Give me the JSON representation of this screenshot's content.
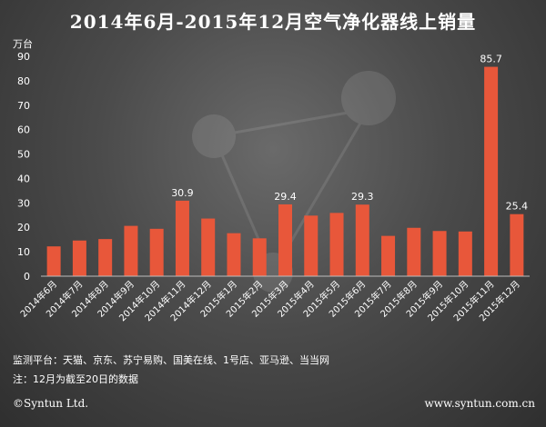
{
  "chart_data": {
    "type": "bar",
    "title": "2014年6月-2015年12月空气净化器线上销量",
    "unit_label": "万台",
    "categories": [
      "2014年6月",
      "2014年7月",
      "2014年8月",
      "2014年9月",
      "2014年10月",
      "2014年11月",
      "2014年12月",
      "2015年1月",
      "2015年2月",
      "2015年3月",
      "2015年4月",
      "2015年5月",
      "2015年6月",
      "2015年7月",
      "2015年8月",
      "2015年9月",
      "2015年10月",
      "2015年11月",
      "2015年12月"
    ],
    "values": [
      12.2,
      14.6,
      15.2,
      20.6,
      19.4,
      30.9,
      23.6,
      17.6,
      15.5,
      29.4,
      24.8,
      25.9,
      29.3,
      16.5,
      19.8,
      18.5,
      18.3,
      85.7,
      25.4
    ],
    "data_labels": [
      null,
      null,
      null,
      null,
      null,
      "30.9",
      null,
      null,
      null,
      "29.4",
      null,
      null,
      "29.3",
      null,
      null,
      null,
      null,
      "85.7",
      "25.4"
    ],
    "yticks": [
      "0",
      "10",
      "20",
      "30",
      "40",
      "50",
      "60",
      "70",
      "80",
      "90"
    ],
    "ylim": [
      0,
      90
    ],
    "bar_color": "#e8573a"
  },
  "notes": {
    "source": "监测平台：天猫、京东、苏宁易购、国美在线、1号店、亚马逊、当当网",
    "note": "注：12月为截至20日的数据"
  },
  "footer": {
    "copyright": "©Syntun Ltd.",
    "site": "www.syntun.com.cn"
  }
}
